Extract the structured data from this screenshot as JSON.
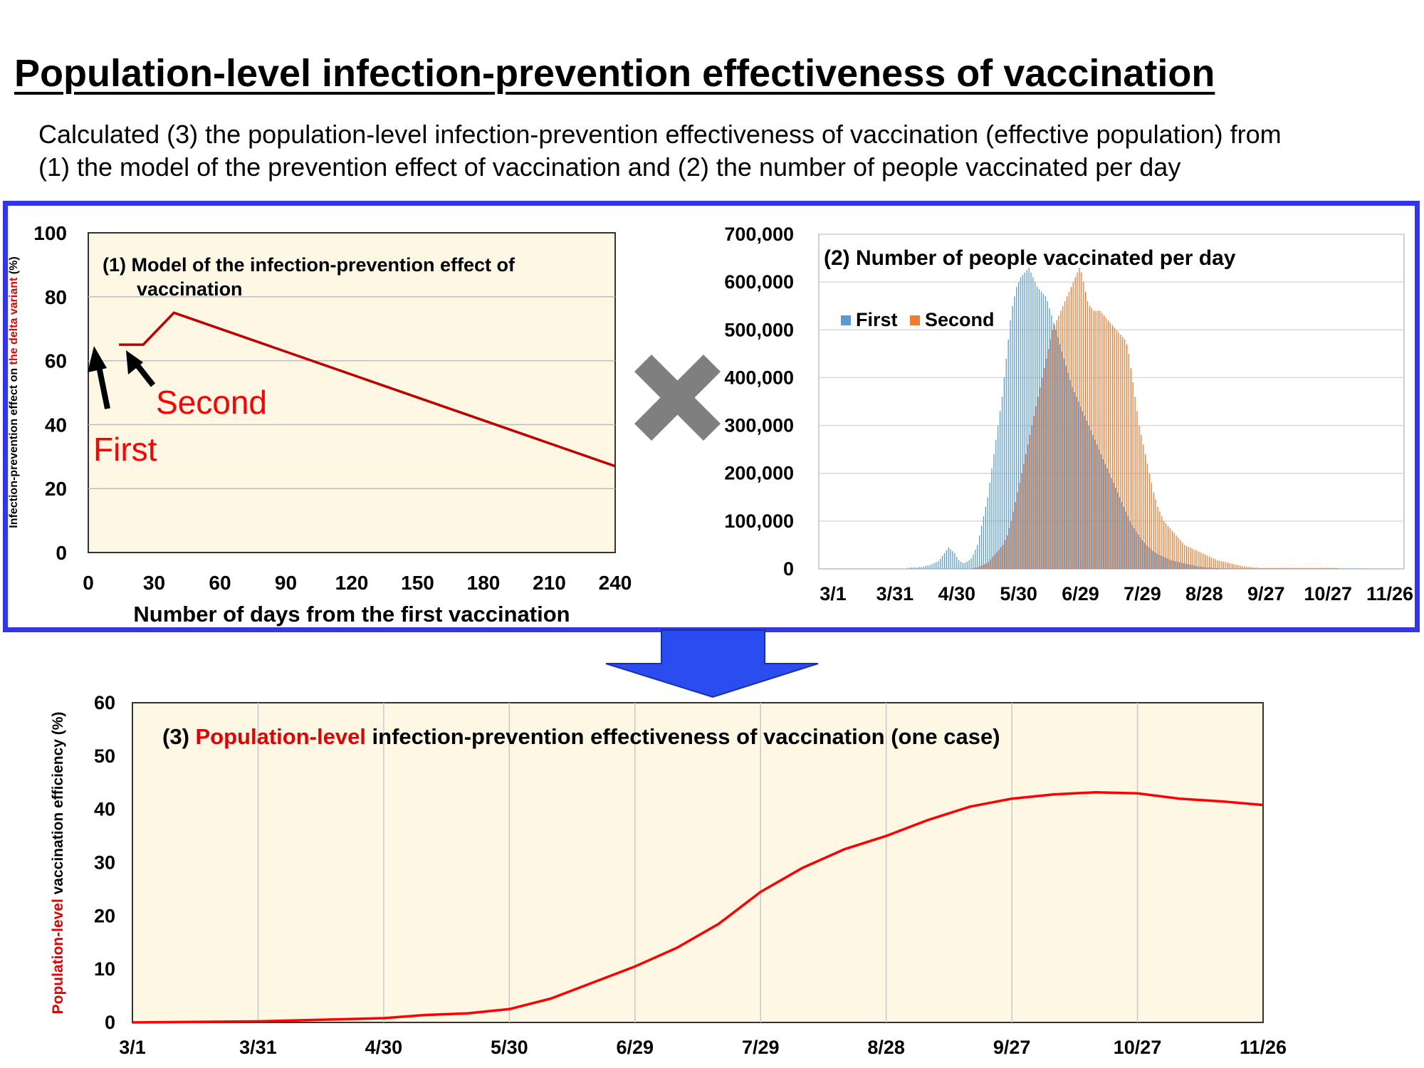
{
  "header": {
    "title": "Population-level infection-prevention effectiveness of vaccination",
    "line1": "Calculated (3) the population-level infection-prevention effectiveness of vaccination (effective population) from",
    "line2": "(1) the model of the prevention effect of vaccination and (2) the number of people vaccinated per day"
  },
  "colors": {
    "frame": "#3333f2",
    "arrow": "#2b4df0",
    "model_line": "#c00000",
    "efficiency_line": "#ff0000",
    "first": "#5b9bd5",
    "second": "#ed7d31",
    "panel_bg": "#fdf7e4",
    "times_symbol": "#7f7f7f"
  },
  "annotations": {
    "first": "First",
    "second": "Second"
  },
  "chart_data": [
    {
      "id": "model",
      "type": "line",
      "title": "(1) Model of the infection-prevention effect of vaccination",
      "title_line1": "(1) Model of the infection-prevention effect of",
      "title_line2": "vaccination",
      "xlabel": "Number of days from the first vaccination",
      "ylabel_part1": "Infection-prevention effect on ",
      "ylabel_red": "the delta variant",
      "ylabel_part2": " (%)",
      "xlim": [
        0,
        240
      ],
      "ylim": [
        0,
        100
      ],
      "xticks": [
        0,
        30,
        60,
        90,
        120,
        150,
        180,
        210,
        240
      ],
      "yticks": [
        0,
        20,
        40,
        60,
        80,
        100
      ],
      "grid": "horizontal",
      "series": [
        {
          "x": [
            14,
            25,
            39,
            240
          ],
          "y": [
            65,
            65,
            75,
            27
          ]
        }
      ]
    },
    {
      "id": "vaccinated",
      "type": "bar",
      "title": "(2) Number of people vaccinated per day",
      "ylim": [
        0,
        700000
      ],
      "yticks": [
        "0",
        "100,000",
        "200,000",
        "300,000",
        "400,000",
        "500,000",
        "600,000",
        "700,000"
      ],
      "xticks": [
        "3/1",
        "3/31",
        "4/30",
        "5/30",
        "6/29",
        "7/29",
        "8/28",
        "9/27",
        "10/27",
        "11/26"
      ],
      "grid": "horizontal",
      "legend": "top-left",
      "series": [
        {
          "name": "First",
          "start": "3/1",
          "values": [
            0,
            0,
            0,
            0,
            0,
            0,
            0,
            0,
            0,
            0,
            0,
            0,
            0,
            0,
            0,
            0,
            0,
            0,
            0,
            0,
            0,
            0,
            0,
            0,
            0,
            0,
            0,
            0,
            0,
            0,
            0,
            0,
            0,
            0,
            0,
            0,
            2000,
            2000,
            3000,
            3000,
            3000,
            3000,
            4000,
            4000,
            5000,
            6000,
            7000,
            8000,
            10000,
            12000,
            14000,
            16000,
            21000,
            27000,
            33000,
            39000,
            45000,
            41000,
            37000,
            33000,
            25000,
            18000,
            15000,
            12000,
            13000,
            15000,
            18000,
            22000,
            30000,
            40000,
            50000,
            70000,
            90000,
            110000,
            130000,
            150000,
            180000,
            210000,
            240000,
            270000,
            300000,
            330000,
            360000,
            400000,
            440000,
            480000,
            520000,
            550000,
            570000,
            590000,
            600000,
            610000,
            615000,
            620000,
            625000,
            630000,
            620000,
            610000,
            600000,
            590000,
            585000,
            580000,
            575000,
            570000,
            560000,
            545000,
            530000,
            515000,
            500000,
            485000,
            470000,
            455000,
            440000,
            425000,
            410000,
            395000,
            380000,
            370000,
            360000,
            350000,
            340000,
            330000,
            320000,
            310000,
            300000,
            290000,
            280000,
            270000,
            260000,
            250000,
            240000,
            230000,
            220000,
            210000,
            200000,
            190000,
            180000,
            170000,
            160000,
            150000,
            140000,
            130000,
            120000,
            110000,
            100000,
            92000,
            85000,
            78000,
            72000,
            66000,
            60000,
            55000,
            50000,
            46000,
            42000,
            38000,
            35000,
            32000,
            30000,
            28000,
            26000,
            24000,
            22000,
            20000,
            18000,
            17000,
            16000,
            15000,
            14000,
            13000,
            12000,
            11000,
            10000,
            9000,
            8000,
            7000,
            6000,
            5000,
            5000,
            4000,
            4000,
            3000,
            3000,
            3000,
            2000,
            2000,
            2000,
            2000,
            1000,
            1000,
            1000,
            1000,
            1000,
            1000,
            1000,
            1000,
            1000,
            1000,
            1000,
            1000,
            1000,
            1000,
            1000,
            1000,
            1000,
            1000,
            1000,
            1000,
            1000,
            1000,
            1000,
            1000,
            1000,
            1000,
            1000,
            1000,
            1000,
            1000,
            1000,
            1000,
            1000,
            1000,
            1000,
            1000,
            1000,
            1000,
            1000,
            1000,
            1000,
            1000,
            1000,
            1000,
            1000,
            1000,
            1000,
            1000,
            1000,
            1000,
            1000,
            1000,
            1000,
            1000,
            1000,
            1000,
            1000,
            1000,
            1000,
            1000,
            1000,
            1000,
            1000,
            1000,
            1000,
            1000,
            1000,
            1000,
            1000,
            1000,
            1000
          ]
        },
        {
          "name": "Second",
          "start": "3/1",
          "values": [
            0,
            0,
            0,
            0,
            0,
            0,
            0,
            0,
            0,
            0,
            0,
            0,
            0,
            0,
            0,
            0,
            0,
            0,
            0,
            0,
            0,
            0,
            0,
            0,
            0,
            0,
            0,
            0,
            0,
            0,
            0,
            0,
            0,
            0,
            0,
            0,
            0,
            0,
            0,
            0,
            0,
            0,
            0,
            0,
            0,
            0,
            0,
            0,
            0,
            0,
            0,
            0,
            0,
            0,
            0,
            0,
            0,
            0,
            0,
            0,
            0,
            0,
            0,
            0,
            0,
            0,
            0,
            1000,
            2000,
            3000,
            4000,
            6000,
            8000,
            10000,
            12000,
            15000,
            20000,
            25000,
            30000,
            35000,
            40000,
            45000,
            50000,
            60000,
            70000,
            85000,
            100000,
            120000,
            140000,
            160000,
            180000,
            200000,
            220000,
            240000,
            260000,
            280000,
            300000,
            320000,
            340000,
            360000,
            380000,
            400000,
            420000,
            440000,
            460000,
            480000,
            500000,
            510000,
            520000,
            530000,
            540000,
            550000,
            560000,
            570000,
            580000,
            590000,
            600000,
            610000,
            620000,
            630000,
            620000,
            600000,
            580000,
            560000,
            550000,
            545000,
            540000,
            540000,
            540000,
            540000,
            535000,
            530000,
            525000,
            520000,
            515000,
            510000,
            505000,
            500000,
            495000,
            490000,
            485000,
            480000,
            470000,
            450000,
            420000,
            390000,
            360000,
            330000,
            300000,
            280000,
            260000,
            240000,
            220000,
            200000,
            180000,
            160000,
            145000,
            130000,
            120000,
            110000,
            100000,
            95000,
            90000,
            85000,
            80000,
            75000,
            70000,
            65000,
            60000,
            55000,
            50000,
            48000,
            46000,
            44000,
            42000,
            40000,
            38000,
            36000,
            34000,
            32000,
            30000,
            28000,
            26000,
            24000,
            22000,
            20000,
            18000,
            17000,
            16000,
            15000,
            14000,
            13000,
            12000,
            11000,
            10000,
            9000,
            8000,
            7000,
            6000,
            5000,
            5000,
            4000,
            4000,
            3000,
            3000,
            3000,
            2000,
            2000,
            2000,
            2000,
            2000,
            2000,
            2000,
            2000,
            2000,
            2000,
            2000,
            2000,
            2000,
            2000,
            2000,
            2000,
            2000,
            2000,
            2000,
            2000,
            2000,
            2000,
            2000,
            2000,
            2000,
            2000,
            2000,
            2000,
            2000,
            2000,
            2000,
            2000,
            2000,
            2000,
            2000,
            2000,
            2000,
            2000,
            2000
          ]
        }
      ]
    },
    {
      "id": "efficiency",
      "type": "line",
      "title_num": "(3) ",
      "title_red": "Population-level",
      "title_rest": " infection-prevention effectiveness of vaccination (one case)",
      "ylabel_red": "Population-level",
      "ylabel_rest": " vaccination efficiency (%)",
      "ylim": [
        0,
        60
      ],
      "yticks": [
        0,
        10,
        20,
        30,
        40,
        50,
        60
      ],
      "xticks": [
        "3/1",
        "3/31",
        "4/30",
        "5/30",
        "6/29",
        "7/29",
        "8/28",
        "9/27",
        "10/27",
        "11/26"
      ],
      "grid": "vertical",
      "series": [
        {
          "x": [
            "3/1",
            "3/31",
            "4/15",
            "4/30",
            "5/10",
            "5/20",
            "5/30",
            "6/9",
            "6/19",
            "6/29",
            "7/9",
            "7/19",
            "7/29",
            "8/8",
            "8/18",
            "8/28",
            "9/7",
            "9/17",
            "9/27",
            "10/7",
            "10/17",
            "10/27",
            "11/6",
            "11/16",
            "11/26"
          ],
          "y": [
            0,
            0.2,
            0.5,
            0.8,
            1.4,
            1.7,
            2.5,
            4.5,
            7.5,
            10.5,
            14,
            18.5,
            24.5,
            29,
            32.5,
            35,
            38,
            40.5,
            42,
            42.8,
            43.2,
            43,
            42,
            41.5,
            40.8
          ]
        }
      ]
    }
  ]
}
